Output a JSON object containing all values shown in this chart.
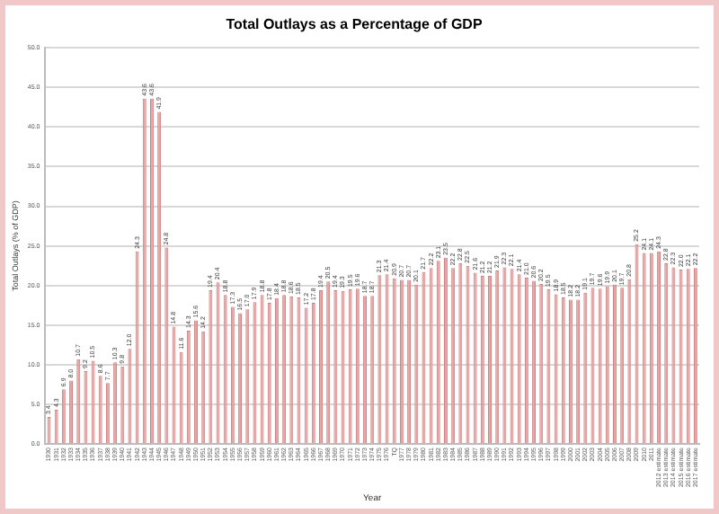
{
  "chart_data": {
    "type": "bar",
    "title": "Total Outlays as a Percentage of GDP",
    "xlabel": "Year",
    "ylabel": "Total Outlays (% of GDP)",
    "categories": [
      "1930",
      "1931",
      "1932",
      "1933",
      "1934",
      "1935",
      "1936",
      "1937",
      "1938",
      "1939",
      "1940",
      "1941",
      "1942",
      "1943",
      "1944",
      "1945",
      "1946",
      "1947",
      "1948",
      "1949",
      "1950",
      "1951",
      "1952",
      "1953",
      "1954",
      "1955",
      "1956",
      "1957",
      "1958",
      "1959",
      "1960",
      "1961",
      "1962",
      "1963",
      "1964",
      "1965",
      "1966",
      "1967",
      "1968",
      "1969",
      "1970",
      "1971",
      "1972",
      "1973",
      "1974",
      "1975",
      "1976",
      "TQ",
      "1977",
      "1978",
      "1979",
      "1980",
      "1981",
      "1982",
      "1983",
      "1984",
      "1985",
      "1986",
      "1987",
      "1988",
      "1989",
      "1990",
      "1991",
      "1992",
      "1993",
      "1994",
      "1995",
      "1996",
      "1997",
      "1998",
      "1999",
      "2000",
      "2001",
      "2002",
      "2003",
      "2004",
      "2005",
      "2006",
      "2007",
      "2008",
      "2009",
      "2010",
      "2011",
      "2012 estimate",
      "2013 estimate",
      "2014 estimate",
      "2015 estimate",
      "2016 estimate",
      "2017 estimate"
    ],
    "values": [
      3.4,
      4.3,
      6.9,
      8.0,
      10.7,
      9.2,
      10.5,
      8.6,
      7.7,
      10.3,
      9.8,
      12.0,
      24.3,
      43.6,
      43.6,
      41.9,
      24.8,
      14.8,
      11.6,
      14.3,
      15.6,
      14.2,
      19.4,
      20.4,
      18.8,
      17.3,
      16.5,
      17.0,
      17.9,
      18.8,
      17.8,
      18.4,
      18.8,
      18.6,
      18.5,
      17.2,
      17.8,
      19.4,
      20.5,
      19.4,
      19.3,
      19.5,
      19.6,
      18.7,
      18.7,
      21.3,
      21.4,
      20.9,
      20.7,
      20.7,
      20.1,
      21.7,
      22.2,
      23.1,
      23.5,
      22.2,
      22.8,
      22.5,
      21.6,
      21.2,
      21.2,
      21.9,
      22.3,
      22.1,
      21.4,
      21.0,
      20.6,
      20.2,
      19.5,
      18.9,
      18.5,
      18.2,
      18.2,
      19.1,
      19.7,
      19.6,
      19.9,
      20.1,
      19.7,
      20.8,
      25.2,
      24.1,
      24.1,
      24.3,
      22.8,
      22.3,
      22.0,
      22.1,
      22.2
    ],
    "value_labels": [
      "3.4",
      "4.3",
      "6.9",
      "8.0",
      "10.7",
      "9.2",
      "10.5",
      "8.6",
      "7.7",
      "10.3",
      "9.8",
      "12.0",
      "24.3",
      "43.6",
      "43.6",
      "41.9",
      "24.8",
      "14.8",
      "11.6",
      "14.3",
      "15.6",
      "14.2",
      "19.4",
      "20.4",
      "18.8",
      "17.3",
      "16.5",
      "17.0",
      "17.9",
      "18.8",
      "17.8",
      "18.4",
      "18.8",
      "18.6",
      "18.5",
      "17.2",
      "17.8",
      "19.4",
      "20.5",
      "19.4",
      "19.3",
      "19.5",
      "19.6",
      "18.7",
      "18.7",
      "21.3",
      "21.4",
      "20.9",
      "20.7",
      "20.7",
      "20.1",
      "21.7",
      "22.2",
      "23.1",
      "23.5",
      "22.2",
      "22.8",
      "22.5",
      "21.6",
      "21.2",
      "21.2",
      "21.9",
      "22.3",
      "22.1",
      "21.4",
      "21.0",
      "20.6",
      "20.2",
      "19.5",
      "18.9",
      "18.5",
      "18.2",
      "18.2",
      "19.1",
      "19.7",
      "19.6",
      "19.9",
      "20.1",
      "19.7",
      "20.8",
      "25.2",
      "24.1",
      "24.1",
      "24.3",
      "22.8",
      "22.3",
      "22.0",
      "22.1",
      "22.2"
    ],
    "color": "#e6a3a3",
    "grid": "y",
    "legend": false,
    "ylim": [
      0,
      50
    ],
    "yticks": [
      {
        "value": 0,
        "label": "0.0"
      },
      {
        "value": 5,
        "label": "5.0"
      },
      {
        "value": 10,
        "label": "10.0"
      },
      {
        "value": 15,
        "label": "15.0"
      },
      {
        "value": 20,
        "label": "20.0"
      },
      {
        "value": 25,
        "label": "25.0"
      },
      {
        "value": 30,
        "label": "30.0"
      },
      {
        "value": 35,
        "label": "35.0"
      },
      {
        "value": 40,
        "label": "40.0"
      },
      {
        "value": 45,
        "label": "45.0"
      },
      {
        "value": 50,
        "label": "50.0"
      }
    ]
  }
}
